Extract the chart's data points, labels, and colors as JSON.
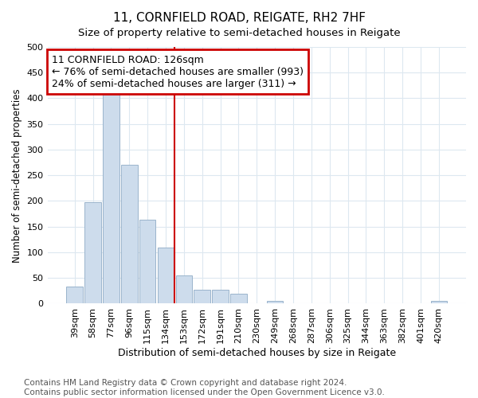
{
  "title": "11, CORNFIELD ROAD, REIGATE, RH2 7HF",
  "subtitle": "Size of property relative to semi-detached houses in Reigate",
  "xlabel": "Distribution of semi-detached houses by size in Reigate",
  "ylabel": "Number of semi-detached properties",
  "categories": [
    "39sqm",
    "58sqm",
    "77sqm",
    "96sqm",
    "115sqm",
    "134sqm",
    "153sqm",
    "172sqm",
    "191sqm",
    "210sqm",
    "230sqm",
    "249sqm",
    "268sqm",
    "287sqm",
    "306sqm",
    "325sqm",
    "344sqm",
    "363sqm",
    "382sqm",
    "401sqm",
    "420sqm"
  ],
  "values": [
    33,
    197,
    409,
    270,
    164,
    110,
    55,
    27,
    27,
    20,
    0,
    5,
    0,
    0,
    0,
    0,
    0,
    0,
    0,
    0,
    5
  ],
  "bar_color": "#cddcec",
  "bar_edge_color": "#9ab4cc",
  "annotation_title": "11 CORNFIELD ROAD: 126sqm",
  "annotation_line1": "← 76% of semi-detached houses are smaller (993)",
  "annotation_line2": "24% of semi-detached houses are larger (311) →",
  "annotation_box_color": "#ffffff",
  "annotation_box_edge_color": "#cc0000",
  "vline_color": "#cc0000",
  "vline_x": 5.5,
  "ylim": [
    0,
    500
  ],
  "yticks": [
    0,
    50,
    100,
    150,
    200,
    250,
    300,
    350,
    400,
    450,
    500
  ],
  "footnote1": "Contains HM Land Registry data © Crown copyright and database right 2024.",
  "footnote2": "Contains public sector information licensed under the Open Government Licence v3.0.",
  "background_color": "#ffffff",
  "plot_background": "#ffffff",
  "grid_color": "#dde8f0",
  "title_fontsize": 11,
  "subtitle_fontsize": 9.5,
  "xlabel_fontsize": 9,
  "ylabel_fontsize": 8.5,
  "tick_fontsize": 8,
  "annotation_fontsize": 9,
  "footnote_fontsize": 7.5
}
